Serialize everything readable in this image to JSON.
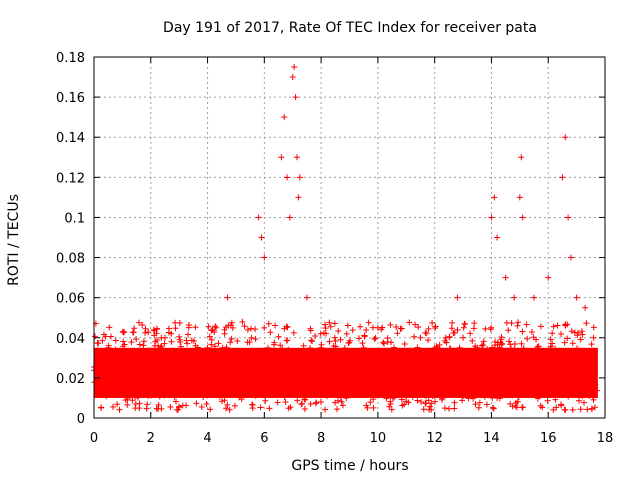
{
  "chart_data": {
    "type": "scatter",
    "title": "Day 191 of 2017, Rate Of TEC Index for receiver pata",
    "xlabel": "GPS time / hours",
    "ylabel": "ROTI / TECUs",
    "xlim": [
      0,
      18
    ],
    "ylim": [
      0,
      0.18
    ],
    "xticks": [
      0,
      2,
      4,
      6,
      8,
      10,
      12,
      14,
      16,
      18
    ],
    "yticks": [
      0,
      0.02,
      0.04,
      0.06,
      0.08,
      0.1,
      0.12,
      0.14,
      0.16,
      0.18
    ],
    "xtick_labels": [
      "0",
      "2",
      "4",
      "6",
      "8",
      "10",
      "12",
      "14",
      "16",
      "18"
    ],
    "ytick_labels": [
      "0",
      "0.02",
      "0.04",
      "0.06",
      "0.08",
      "0.1",
      "0.12",
      "0.14",
      "0.16",
      "0.18"
    ],
    "grid": true,
    "marker": "+",
    "color": "#ff0000",
    "series": [
      {
        "name": "ROTI",
        "x": [
          0.2,
          0.5,
          1.0,
          1.5,
          2.0,
          2.5,
          3.0,
          3.5,
          4.0,
          4.3,
          4.7,
          5.0,
          5.5,
          5.8,
          5.9,
          6.0,
          6.3,
          6.6,
          6.7,
          6.8,
          6.9,
          7.0,
          7.05,
          7.1,
          7.15,
          7.2,
          7.25,
          7.5,
          8.0,
          8.5,
          9.0,
          9.5,
          10.0,
          10.5,
          11.0,
          11.5,
          12.0,
          12.5,
          12.8,
          13.0,
          13.5,
          14.0,
          14.1,
          14.2,
          14.5,
          14.8,
          15.0,
          15.05,
          15.1,
          15.5,
          16.0,
          16.5,
          16.6,
          16.7,
          16.8,
          17.0,
          17.3,
          17.6
        ],
        "y": [
          0.02,
          0.035,
          0.025,
          0.03,
          0.022,
          0.04,
          0.028,
          0.03,
          0.035,
          0.045,
          0.06,
          0.03,
          0.025,
          0.1,
          0.09,
          0.08,
          0.03,
          0.13,
          0.15,
          0.12,
          0.1,
          0.17,
          0.175,
          0.16,
          0.13,
          0.11,
          0.12,
          0.06,
          0.035,
          0.03,
          0.028,
          0.035,
          0.045,
          0.03,
          0.03,
          0.04,
          0.035,
          0.03,
          0.06,
          0.04,
          0.035,
          0.1,
          0.11,
          0.09,
          0.07,
          0.06,
          0.11,
          0.13,
          0.1,
          0.06,
          0.07,
          0.12,
          0.14,
          0.1,
          0.08,
          0.06,
          0.055,
          0.04
        ]
      }
    ],
    "band": {
      "description_values": "dense baseline",
      "x_start": 0.0,
      "x_end": 17.75,
      "y_low": 0.01,
      "y_high": 0.035
    }
  }
}
